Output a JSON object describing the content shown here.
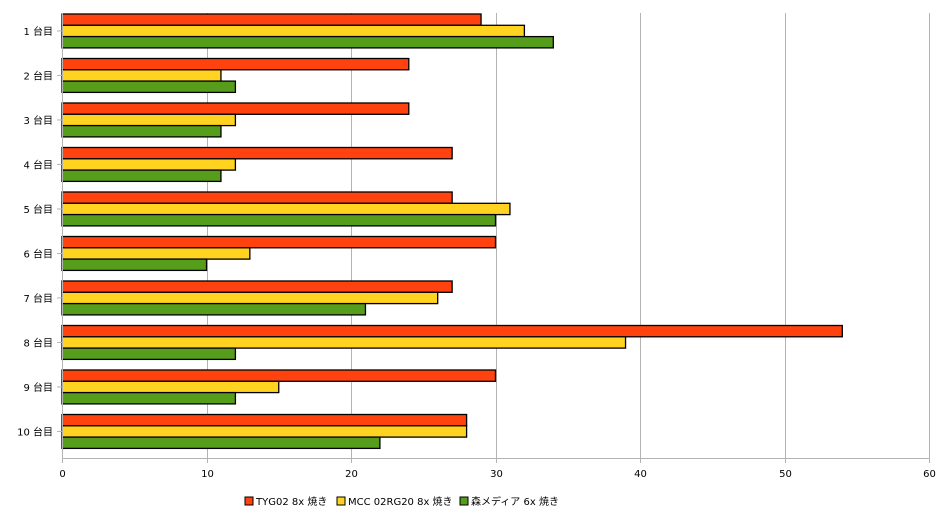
{
  "chart_data": {
    "type": "bar",
    "orientation": "horizontal",
    "title": "",
    "xlabel": "",
    "ylabel": "",
    "xlim": [
      0,
      60
    ],
    "xticks": [
      0,
      10,
      20,
      30,
      40,
      50,
      60
    ],
    "grid": true,
    "legend_position": "bottom",
    "categories": [
      "1 台目",
      "2 台目",
      "3 台目",
      "4 台目",
      "5 台目",
      "6 台目",
      "7 台目",
      "8 台目",
      "9 台目",
      "10 台目"
    ],
    "series": [
      {
        "name": "TYG02 8x 焼き",
        "color": "#ff420e",
        "values": [
          29,
          24,
          24,
          27,
          27,
          30,
          27,
          54,
          30,
          28
        ]
      },
      {
        "name": "MCC 02RG20 8x 焼き",
        "color": "#ffd320",
        "values": [
          32,
          11,
          12,
          12,
          31,
          13,
          26,
          39,
          15,
          28
        ]
      },
      {
        "name": "森メディア  6x 焼き",
        "color": "#579d1c",
        "values": [
          34,
          12,
          11,
          11,
          30,
          10,
          21,
          12,
          12,
          22
        ]
      }
    ]
  }
}
